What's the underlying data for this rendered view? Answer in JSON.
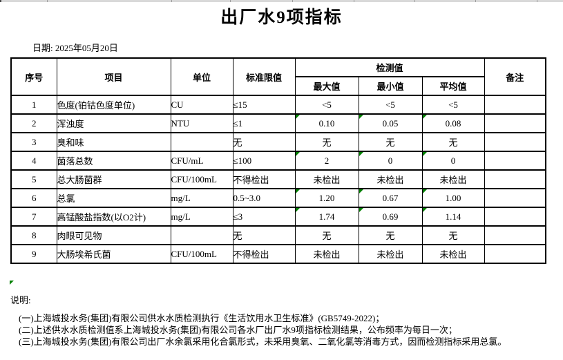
{
  "page": {
    "title": "出厂水9项指标",
    "date_line": "日期: 2025年05月20日"
  },
  "table": {
    "headers": {
      "seq": "序号",
      "item": "项目",
      "unit": "单位",
      "limit": "标准限值",
      "detection": "检测值",
      "max": "最大值",
      "min": "最小值",
      "avg": "平均值",
      "remark": "备注"
    },
    "rows": [
      {
        "seq": "1",
        "item": "色度(铂钴色度单位)",
        "unit": "CU",
        "limit": "≤15",
        "max": "<5",
        "min": "<5",
        "avg": "<5",
        "remark": "",
        "flagged": false
      },
      {
        "seq": "2",
        "item": "浑浊度",
        "unit": "NTU",
        "limit": "≤1",
        "max": "0.10",
        "min": "0.05",
        "avg": "0.08",
        "remark": "",
        "flagged": true
      },
      {
        "seq": "3",
        "item": "臭和味",
        "unit": "",
        "limit": "无",
        "max": "无",
        "min": "无",
        "avg": "无",
        "remark": "",
        "flagged": false
      },
      {
        "seq": "4",
        "item": "菌落总数",
        "unit": "CFU/mL",
        "limit": "≤100",
        "max": "2",
        "min": "0",
        "avg": "0",
        "remark": "",
        "flagged": true
      },
      {
        "seq": "5",
        "item": "总大肠菌群",
        "unit": "CFU/100mL",
        "limit": "不得检出",
        "max": "未检出",
        "min": "未检出",
        "avg": "未检出",
        "remark": "",
        "flagged": false
      },
      {
        "seq": "6",
        "item": "总氯",
        "unit": "mg/L",
        "limit": "0.5~3.0",
        "max": "1.20",
        "min": "0.67",
        "avg": "1.00",
        "remark": "",
        "flagged": true
      },
      {
        "seq": "7",
        "item": "高锰酸盐指数(以O2计)",
        "unit": "mg/L",
        "limit": "≤3",
        "max": "1.74",
        "min": "0.69",
        "avg": "1.14",
        "remark": "",
        "flagged": true
      },
      {
        "seq": "8",
        "item": "肉眼可见物",
        "unit": "",
        "limit": "无",
        "max": "无",
        "min": "无",
        "avg": "无",
        "remark": "",
        "flagged": false
      },
      {
        "seq": "9",
        "item": "大肠埃希氏菌",
        "unit": "CFU/100mL",
        "limit": "不得检出",
        "max": "未检出",
        "min": "未检出",
        "avg": "未检出",
        "remark": "",
        "flagged": false
      }
    ]
  },
  "notes": {
    "label": "说明:",
    "items": [
      "(一)上海城投水务(集团)有限公司供水水质检测执行《生活饮用水卫生标准》(GB5749-2022)；",
      "(二)上述供水水质检测值系上海城投水务(集团)有限公司各水厂出厂水9项指标检测结果，公布频率为每日一次；",
      "(三)上海城投水务(集团)有限公司出厂水余氯采用化合氯形式，未采用臭氧、二氧化氯等消毒方式，因而检测指标采用总氯。"
    ]
  },
  "colors": {
    "error_indicator": "#008000",
    "table_border": "#000000",
    "top_strip": "#d9d9d9"
  }
}
